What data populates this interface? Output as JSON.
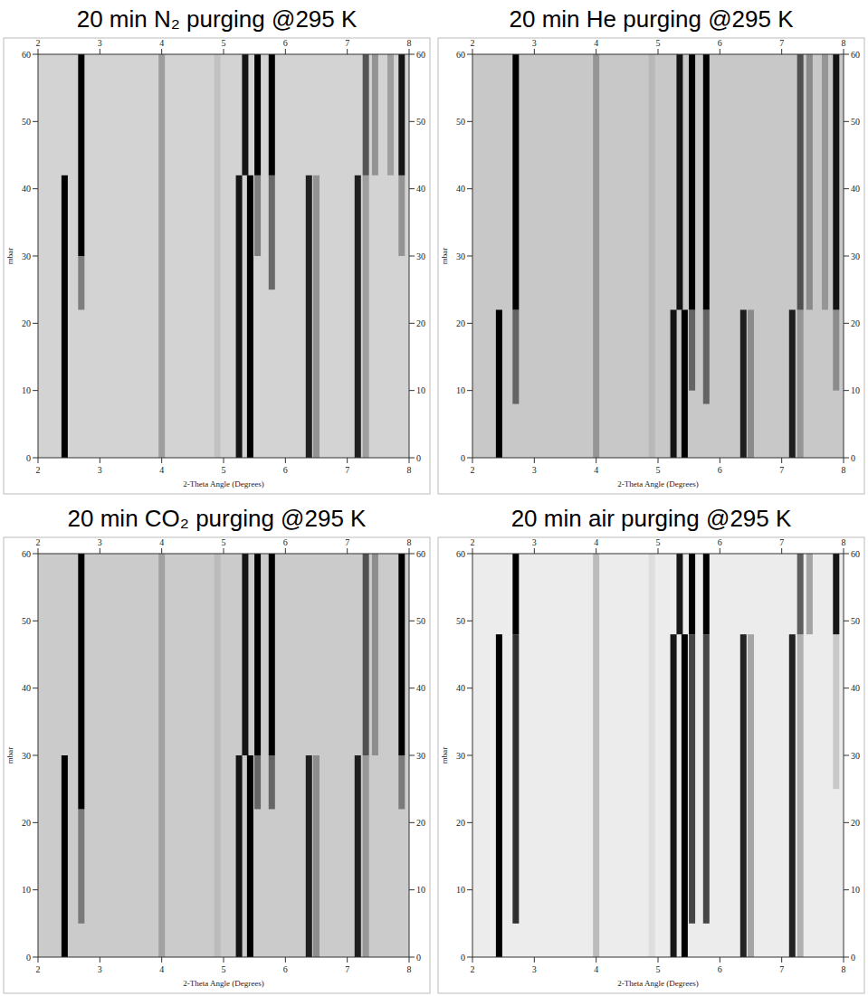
{
  "chart_data": [
    {
      "type": "heatmap",
      "title": "20 min N₂ purging @295 K",
      "x_label": "2-Theta Angle (Degrees)",
      "y_label": "mbar",
      "xlim": [
        2,
        8
      ],
      "ylim": [
        0,
        60
      ],
      "xticks": [
        2,
        3,
        4,
        5,
        6,
        7,
        8
      ],
      "yticks": [
        0,
        10,
        20,
        30,
        40,
        50,
        60
      ],
      "peaks": [
        {
          "x": 2.43,
          "y": [
            0,
            42
          ],
          "intensity": 1
        },
        {
          "x": 5.25,
          "y": [
            0,
            42
          ],
          "intensity": 0.9
        },
        {
          "x": 5.43,
          "y": [
            0,
            42
          ],
          "intensity": 1
        },
        {
          "x": 6.38,
          "y": [
            0,
            42
          ],
          "intensity": 0.85
        },
        {
          "x": 6.5,
          "y": [
            0,
            42
          ],
          "intensity": 0.3
        },
        {
          "x": 7.17,
          "y": [
            0,
            42
          ],
          "intensity": 0.85
        },
        {
          "x": 7.3,
          "y": [
            0,
            42
          ],
          "intensity": 0.25
        },
        {
          "x": 4.0,
          "y": [
            0,
            60
          ],
          "intensity": 0.25
        },
        {
          "x": 4.9,
          "y": [
            0,
            60
          ],
          "intensity": 0.08
        },
        {
          "x": 2.7,
          "y": [
            22,
            30
          ],
          "intensity": 0.4
        },
        {
          "x": 2.7,
          "y": [
            30,
            60
          ],
          "intensity": 1
        },
        {
          "x": 5.35,
          "y": [
            42,
            60
          ],
          "intensity": 0.9
        },
        {
          "x": 5.55,
          "y": [
            30,
            42
          ],
          "intensity": 0.4
        },
        {
          "x": 5.55,
          "y": [
            42,
            60
          ],
          "intensity": 1
        },
        {
          "x": 5.78,
          "y": [
            25,
            42
          ],
          "intensity": 0.5
        },
        {
          "x": 5.78,
          "y": [
            42,
            60
          ],
          "intensity": 1
        },
        {
          "x": 7.3,
          "y": [
            42,
            60
          ],
          "intensity": 0.6
        },
        {
          "x": 7.45,
          "y": [
            42,
            60
          ],
          "intensity": 0.3
        },
        {
          "x": 7.7,
          "y": [
            42,
            60
          ],
          "intensity": 0.25
        },
        {
          "x": 7.88,
          "y": [
            30,
            42
          ],
          "intensity": 0.3
        },
        {
          "x": 7.88,
          "y": [
            42,
            60
          ],
          "intensity": 0.9
        }
      ]
    },
    {
      "type": "heatmap",
      "title": "20 min He purging @295 K",
      "x_label": "2-Theta Angle (Degrees)",
      "y_label": "mbar",
      "xlim": [
        2,
        8
      ],
      "ylim": [
        0,
        60
      ],
      "xticks": [
        2,
        3,
        4,
        5,
        6,
        7,
        8
      ],
      "yticks": [
        0,
        10,
        20,
        30,
        40,
        50,
        60
      ],
      "peaks": [
        {
          "x": 2.43,
          "y": [
            0,
            22
          ],
          "intensity": 1
        },
        {
          "x": 5.25,
          "y": [
            0,
            22
          ],
          "intensity": 0.9
        },
        {
          "x": 5.43,
          "y": [
            0,
            22
          ],
          "intensity": 1
        },
        {
          "x": 6.38,
          "y": [
            0,
            22
          ],
          "intensity": 0.85
        },
        {
          "x": 6.5,
          "y": [
            0,
            22
          ],
          "intensity": 0.3
        },
        {
          "x": 7.17,
          "y": [
            0,
            22
          ],
          "intensity": 0.85
        },
        {
          "x": 7.3,
          "y": [
            0,
            22
          ],
          "intensity": 0.25
        },
        {
          "x": 4.0,
          "y": [
            0,
            60
          ],
          "intensity": 0.25
        },
        {
          "x": 4.9,
          "y": [
            0,
            60
          ],
          "intensity": 0.08
        },
        {
          "x": 2.7,
          "y": [
            8,
            22
          ],
          "intensity": 0.5
        },
        {
          "x": 2.7,
          "y": [
            22,
            60
          ],
          "intensity": 1
        },
        {
          "x": 5.35,
          "y": [
            22,
            60
          ],
          "intensity": 0.9
        },
        {
          "x": 5.55,
          "y": [
            10,
            22
          ],
          "intensity": 0.5
        },
        {
          "x": 5.55,
          "y": [
            22,
            60
          ],
          "intensity": 1
        },
        {
          "x": 5.78,
          "y": [
            8,
            22
          ],
          "intensity": 0.5
        },
        {
          "x": 5.78,
          "y": [
            22,
            60
          ],
          "intensity": 1
        },
        {
          "x": 7.3,
          "y": [
            22,
            60
          ],
          "intensity": 0.6
        },
        {
          "x": 7.45,
          "y": [
            22,
            60
          ],
          "intensity": 0.3
        },
        {
          "x": 7.7,
          "y": [
            22,
            60
          ],
          "intensity": 0.25
        },
        {
          "x": 7.88,
          "y": [
            10,
            22
          ],
          "intensity": 0.3
        },
        {
          "x": 7.88,
          "y": [
            22,
            60
          ],
          "intensity": 0.9
        }
      ]
    },
    {
      "type": "heatmap",
      "title": "20 min CO₂ purging @295 K",
      "x_label": "2-Theta Angle (Degrees)",
      "y_label": "mbar",
      "xlim": [
        2,
        8
      ],
      "ylim": [
        0,
        60
      ],
      "xticks": [
        2,
        3,
        4,
        5,
        6,
        7,
        8
      ],
      "yticks": [
        0,
        10,
        20,
        30,
        40,
        50,
        60
      ],
      "peaks": [
        {
          "x": 2.43,
          "y": [
            0,
            30
          ],
          "intensity": 1
        },
        {
          "x": 5.25,
          "y": [
            0,
            30
          ],
          "intensity": 0.9
        },
        {
          "x": 5.43,
          "y": [
            0,
            30
          ],
          "intensity": 1
        },
        {
          "x": 6.38,
          "y": [
            0,
            30
          ],
          "intensity": 0.85
        },
        {
          "x": 6.5,
          "y": [
            0,
            30
          ],
          "intensity": 0.3
        },
        {
          "x": 7.17,
          "y": [
            0,
            30
          ],
          "intensity": 0.85
        },
        {
          "x": 7.3,
          "y": [
            0,
            30
          ],
          "intensity": 0.25
        },
        {
          "x": 4.0,
          "y": [
            0,
            60
          ],
          "intensity": 0.2
        },
        {
          "x": 4.9,
          "y": [
            0,
            60
          ],
          "intensity": 0.08
        },
        {
          "x": 2.7,
          "y": [
            5,
            22
          ],
          "intensity": 0.4
        },
        {
          "x": 2.7,
          "y": [
            22,
            60
          ],
          "intensity": 1
        },
        {
          "x": 5.35,
          "y": [
            30,
            60
          ],
          "intensity": 0.9
        },
        {
          "x": 5.55,
          "y": [
            22,
            30
          ],
          "intensity": 0.5
        },
        {
          "x": 5.55,
          "y": [
            30,
            60
          ],
          "intensity": 1
        },
        {
          "x": 5.78,
          "y": [
            22,
            30
          ],
          "intensity": 0.5
        },
        {
          "x": 5.78,
          "y": [
            30,
            60
          ],
          "intensity": 1
        },
        {
          "x": 7.3,
          "y": [
            30,
            60
          ],
          "intensity": 0.6
        },
        {
          "x": 7.45,
          "y": [
            30,
            60
          ],
          "intensity": 0.3
        },
        {
          "x": 7.88,
          "y": [
            22,
            30
          ],
          "intensity": 0.4
        },
        {
          "x": 7.88,
          "y": [
            30,
            60
          ],
          "intensity": 1
        }
      ]
    },
    {
      "type": "heatmap",
      "title": "20 min air purging @295 K",
      "x_label": "2-Theta Angle (Degrees)",
      "y_label": "mbar",
      "xlim": [
        2,
        8
      ],
      "ylim": [
        0,
        60
      ],
      "xticks": [
        2,
        3,
        4,
        5,
        6,
        7,
        8
      ],
      "yticks": [
        0,
        10,
        20,
        30,
        40,
        50,
        60
      ],
      "peaks": [
        {
          "x": 2.43,
          "y": [
            0,
            48
          ],
          "intensity": 1
        },
        {
          "x": 5.25,
          "y": [
            0,
            48
          ],
          "intensity": 0.9
        },
        {
          "x": 5.43,
          "y": [
            0,
            48
          ],
          "intensity": 1
        },
        {
          "x": 6.38,
          "y": [
            0,
            48
          ],
          "intensity": 0.85
        },
        {
          "x": 6.5,
          "y": [
            0,
            48
          ],
          "intensity": 0.3
        },
        {
          "x": 7.17,
          "y": [
            0,
            48
          ],
          "intensity": 0.85
        },
        {
          "x": 7.3,
          "y": [
            0,
            48
          ],
          "intensity": 0.25
        },
        {
          "x": 4.0,
          "y": [
            0,
            60
          ],
          "intensity": 0.2
        },
        {
          "x": 4.9,
          "y": [
            0,
            60
          ],
          "intensity": 0.06
        },
        {
          "x": 2.7,
          "y": [
            5,
            48
          ],
          "intensity": 0.8
        },
        {
          "x": 2.7,
          "y": [
            48,
            60
          ],
          "intensity": 1
        },
        {
          "x": 5.35,
          "y": [
            48,
            60
          ],
          "intensity": 0.9
        },
        {
          "x": 5.55,
          "y": [
            5,
            48
          ],
          "intensity": 0.7
        },
        {
          "x": 5.55,
          "y": [
            48,
            60
          ],
          "intensity": 1
        },
        {
          "x": 5.78,
          "y": [
            5,
            48
          ],
          "intensity": 0.7
        },
        {
          "x": 5.78,
          "y": [
            48,
            60
          ],
          "intensity": 1
        },
        {
          "x": 7.3,
          "y": [
            48,
            60
          ],
          "intensity": 0.6
        },
        {
          "x": 7.45,
          "y": [
            48,
            60
          ],
          "intensity": 0.3
        },
        {
          "x": 7.88,
          "y": [
            25,
            48
          ],
          "intensity": 0.15
        },
        {
          "x": 7.88,
          "y": [
            48,
            60
          ],
          "intensity": 0.9
        }
      ]
    }
  ]
}
